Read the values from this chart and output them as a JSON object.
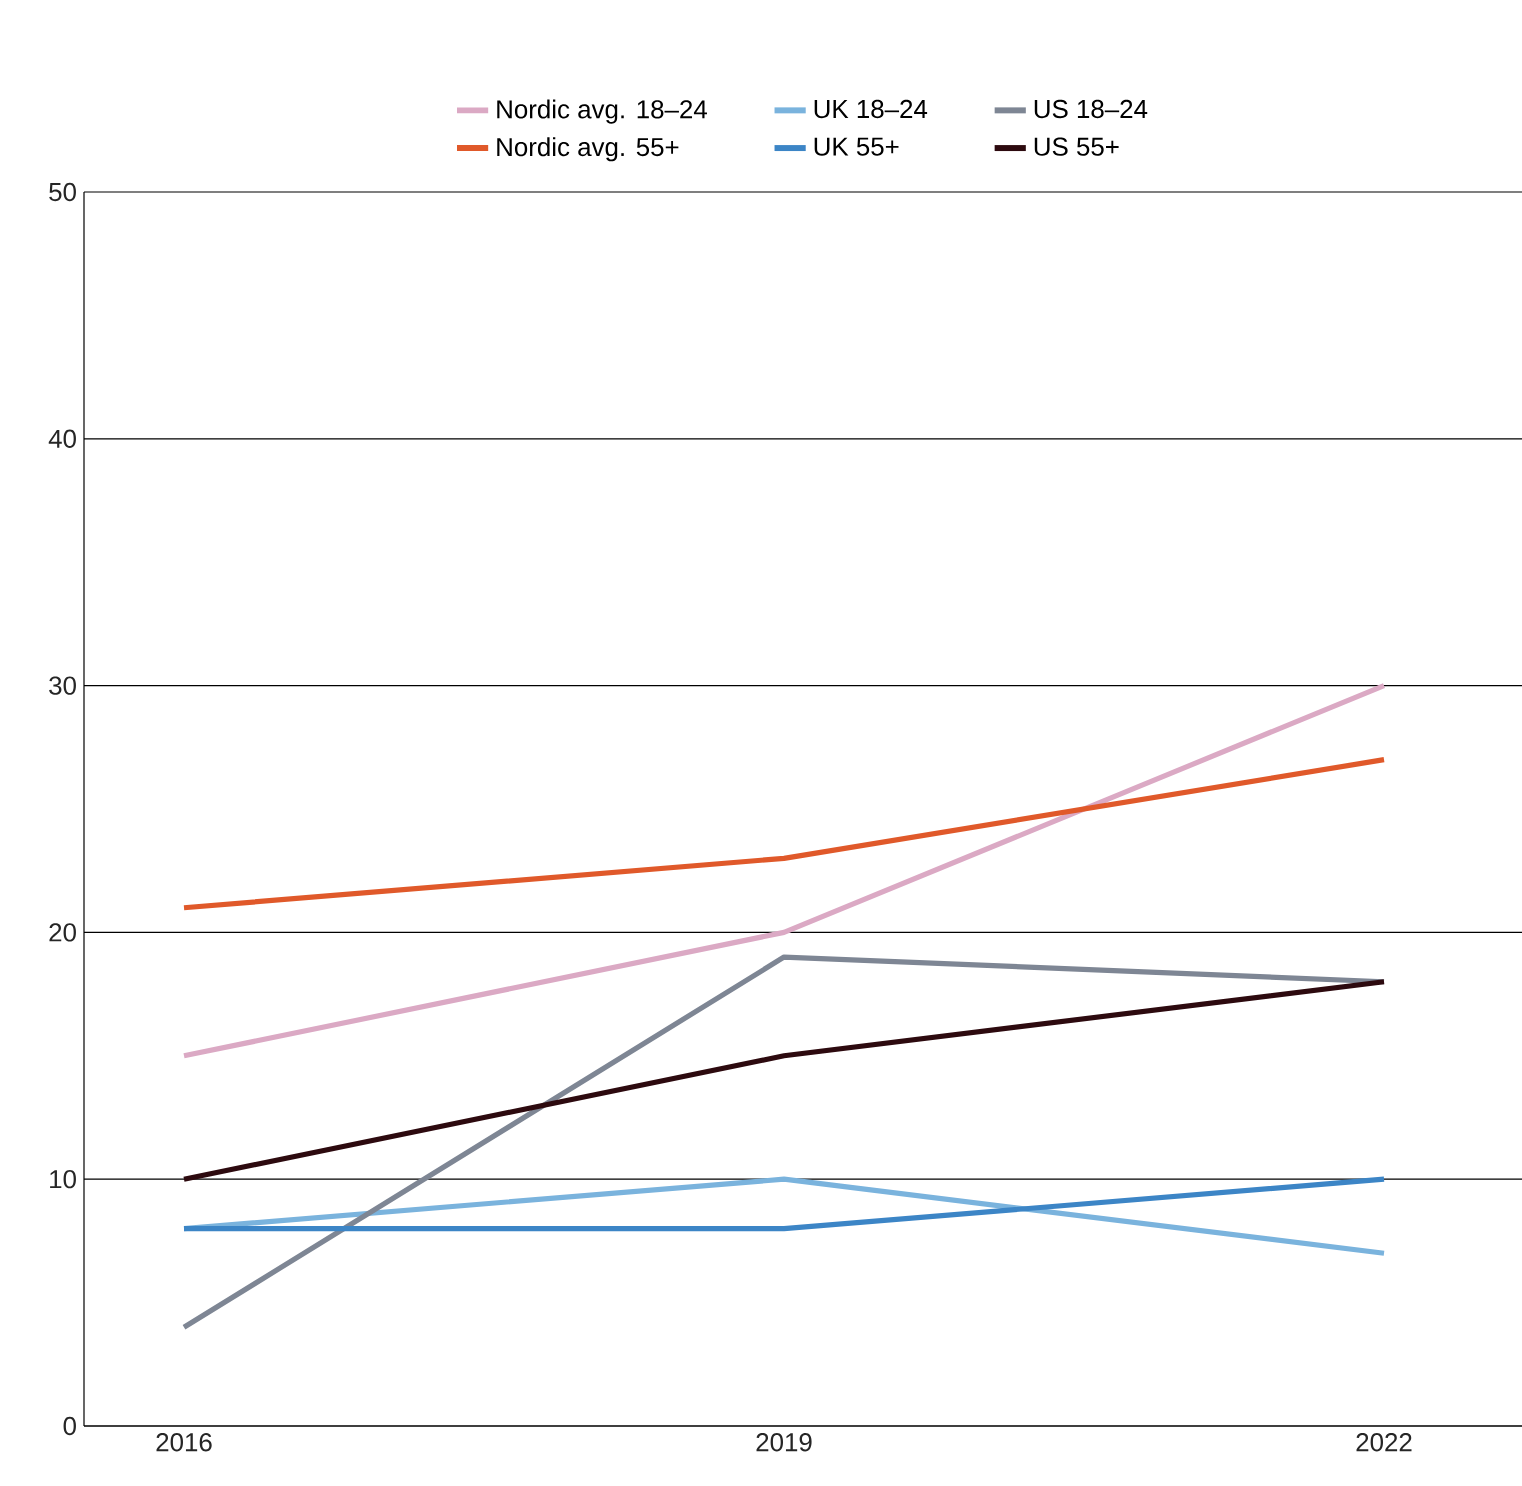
{
  "chart_data": {
    "type": "line",
    "categories": [
      "2016",
      "2019",
      "2022"
    ],
    "series": [
      {
        "name": "Nordic avg. 18–24",
        "color": "#dba9c4",
        "values": [
          15,
          20,
          30
        ]
      },
      {
        "name": "UK 18–24",
        "color": "#7ab3dd",
        "values": [
          8,
          10,
          7
        ]
      },
      {
        "name": "US 18–24",
        "color": "#7e8694",
        "values": [
          4,
          19,
          18
        ]
      },
      {
        "name": "Nordic avg. 55+",
        "color": "#e0592a",
        "values": [
          21,
          23,
          27
        ]
      },
      {
        "name": "UK 55+",
        "color": "#3c85c6",
        "values": [
          8,
          8,
          10
        ]
      },
      {
        "name": "US 55+",
        "color": "#2d0a0f",
        "values": [
          10,
          15,
          18
        ]
      }
    ],
    "ylim": [
      0,
      50
    ],
    "yticks": [
      0,
      10,
      20,
      30,
      40,
      50
    ],
    "grid": "y",
    "legend": "top",
    "marker": "none",
    "line_style": "solid"
  }
}
